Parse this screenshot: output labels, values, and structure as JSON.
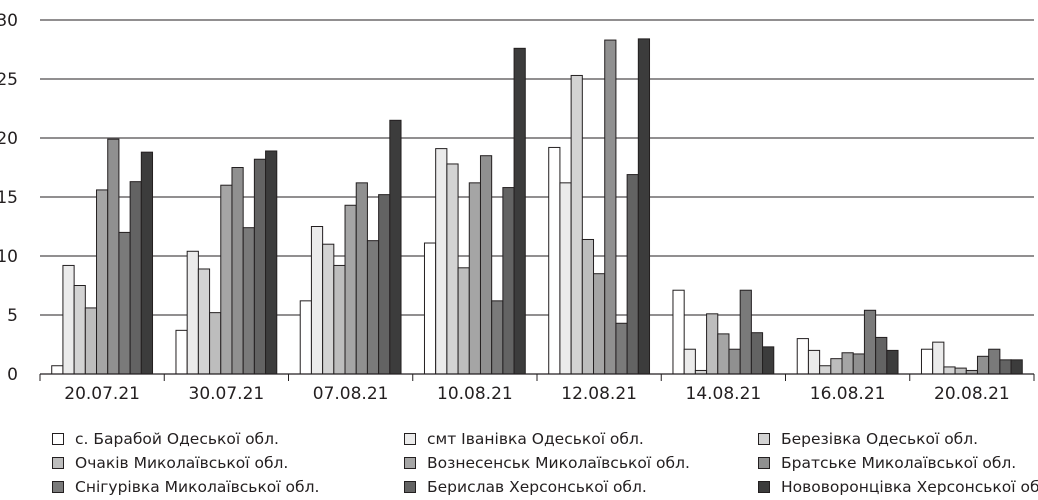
{
  "chart_data": {
    "type": "bar",
    "categories": [
      "20.07.21",
      "30.07.21",
      "07.08.21",
      "10.08.21",
      "12.08.21",
      "14.08.21",
      "16.08.21",
      "20.08.21"
    ],
    "ylim": [
      0,
      30
    ],
    "yticks": [
      0,
      5,
      10,
      15,
      20,
      25,
      30
    ],
    "grid": true,
    "legend_position": "bottom",
    "series": [
      {
        "name": "с. Барабой Одеської обл.",
        "color": "#ffffff",
        "values": [
          0.7,
          3.7,
          6.2,
          11.1,
          19.2,
          7.1,
          3.0,
          2.1
        ]
      },
      {
        "name": "смт Іванівка Одеської обл.",
        "color": "#ebebeb",
        "values": [
          9.2,
          10.4,
          12.5,
          19.1,
          16.2,
          2.1,
          2.0,
          2.7
        ]
      },
      {
        "name": "Березівка Одеської обл.",
        "color": "#d3d3d3",
        "values": [
          7.5,
          8.9,
          11.0,
          17.8,
          25.3,
          0.3,
          0.7,
          0.6
        ]
      },
      {
        "name": "Очаків Миколаївської обл.",
        "color": "#bdbdbd",
        "values": [
          5.6,
          5.2,
          9.2,
          9.0,
          11.4,
          5.1,
          1.3,
          0.5
        ]
      },
      {
        "name": "Вознесенськ Миколаївської обл.",
        "color": "#a5a5a5",
        "values": [
          15.6,
          16.0,
          14.3,
          16.2,
          8.5,
          3.4,
          1.8,
          0.3
        ]
      },
      {
        "name": "Братське Миколаївської обл.",
        "color": "#909090",
        "values": [
          19.9,
          17.5,
          16.2,
          18.5,
          28.3,
          2.1,
          1.7,
          1.5
        ]
      },
      {
        "name": "Снігурівка Миколаївської обл.",
        "color": "#7a7a7a",
        "values": [
          12.0,
          12.4,
          11.3,
          6.2,
          4.3,
          7.1,
          5.4,
          2.1
        ]
      },
      {
        "name": "Берислав Херсонської обл.",
        "color": "#636363",
        "values": [
          16.3,
          18.2,
          15.2,
          15.8,
          16.9,
          3.5,
          3.1,
          1.2
        ]
      },
      {
        "name": "Нововоронцівка Херсонської обл.",
        "color": "#3c3c3c",
        "values": [
          18.8,
          18.9,
          21.5,
          27.6,
          28.4,
          2.3,
          2.0,
          1.2
        ]
      }
    ]
  }
}
